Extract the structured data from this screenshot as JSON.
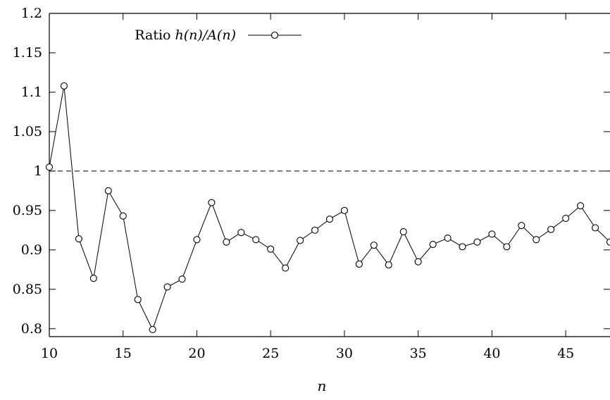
{
  "chart_data": {
    "type": "line",
    "xlabel": "n",
    "ylabel": "",
    "xlim": [
      10,
      48
    ],
    "ylim": [
      0.79,
      1.2
    ],
    "xticks": [
      "10",
      "15",
      "20",
      "25",
      "30",
      "35",
      "40",
      "45"
    ],
    "yticks": [
      "0.8",
      "0.85",
      "0.9",
      "0.95",
      "1",
      "1.05",
      "1.1",
      "1.15",
      "1.2"
    ],
    "legend": {
      "position": "top-left",
      "label_prefix": "Ratio ",
      "label_math": "h(n)/A(n)"
    },
    "reference_line": {
      "y": 1,
      "style": "dashed"
    },
    "series": [
      {
        "name": "Ratio h(n)/A(n)",
        "x": [
          10,
          11,
          12,
          13,
          14,
          15,
          16,
          17,
          18,
          19,
          20,
          21,
          22,
          23,
          24,
          25,
          26,
          27,
          28,
          29,
          30,
          31,
          32,
          33,
          34,
          35,
          36,
          37,
          38,
          39,
          40,
          41,
          42,
          43,
          44,
          45,
          46,
          47,
          48
        ],
        "y": [
          1.005,
          1.108,
          0.914,
          0.864,
          0.975,
          0.943,
          0.837,
          0.799,
          0.853,
          0.863,
          0.913,
          0.96,
          0.91,
          0.922,
          0.913,
          0.901,
          0.877,
          0.912,
          0.925,
          0.939,
          0.95,
          0.882,
          0.906,
          0.881,
          0.923,
          0.885,
          0.907,
          0.915,
          0.904,
          0.91,
          0.92,
          0.904,
          0.931,
          0.913,
          0.926,
          0.94,
          0.956,
          0.928,
          0.91
        ]
      }
    ]
  }
}
